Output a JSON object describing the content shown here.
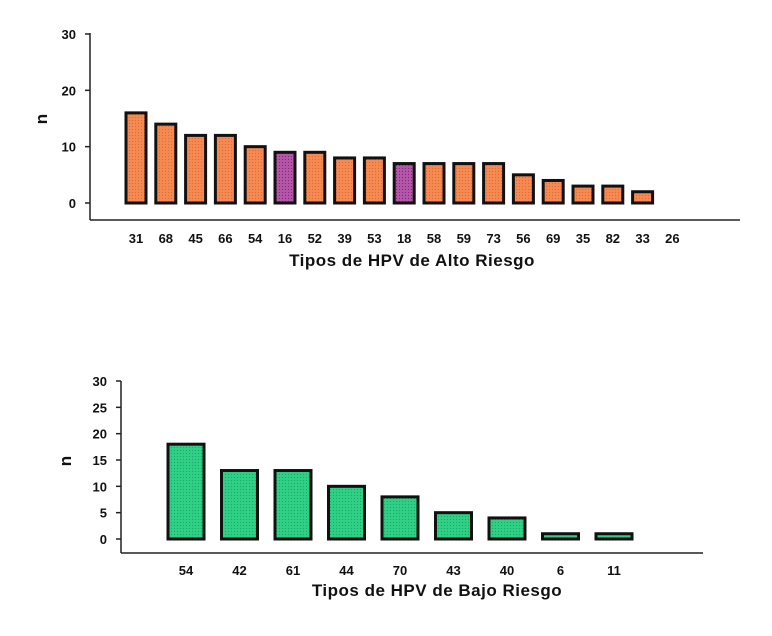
{
  "chart_data": [
    {
      "type": "bar",
      "xlabel": "Tipos de HPV de Alto Riesgo",
      "ylabel": "n",
      "ylim": [
        0,
        30
      ],
      "yticks": [
        0,
        10,
        20,
        30
      ],
      "categories": [
        "31",
        "68",
        "45",
        "66",
        "54",
        "16",
        "52",
        "39",
        "53",
        "18",
        "58",
        "59",
        "73",
        "56",
        "69",
        "35",
        "82",
        "33",
        "26"
      ],
      "values": [
        16,
        14,
        12,
        12,
        10,
        9,
        9,
        8,
        8,
        7,
        7,
        7,
        7,
        5,
        4,
        3,
        3,
        2,
        0
      ],
      "highlighted": [
        "16",
        "18"
      ],
      "colors": {
        "bar": "#f48a52",
        "highlight": "#b455a8",
        "edge": "#111111"
      }
    },
    {
      "type": "bar",
      "xlabel": "Tipos de HPV de Bajo Riesgo",
      "ylabel": "n",
      "ylim": [
        0,
        30
      ],
      "yticks": [
        0,
        5,
        10,
        15,
        20,
        25,
        30
      ],
      "categories": [
        "54",
        "42",
        "61",
        "44",
        "70",
        "43",
        "40",
        "6",
        "11"
      ],
      "values": [
        18,
        13,
        13,
        10,
        8,
        5,
        4,
        1,
        1
      ],
      "highlighted": [],
      "colors": {
        "bar": "#2fcf86",
        "highlight": "#2fcf86",
        "edge": "#111111"
      }
    }
  ]
}
